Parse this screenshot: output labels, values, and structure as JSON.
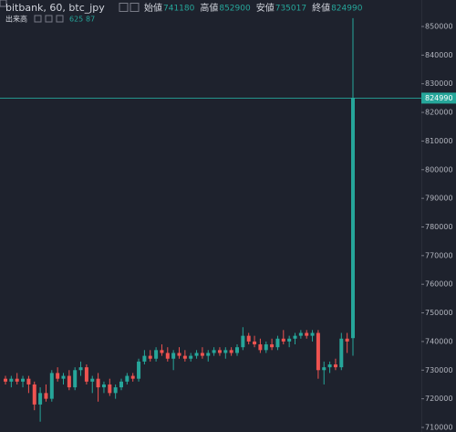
{
  "header": {
    "symbol": "bitbank, 60, btc_jpy",
    "ohlc": [
      {
        "label": "始値",
        "value": 741180
      },
      {
        "label": "高値",
        "value": 852900
      },
      {
        "label": "安値",
        "value": 735017
      },
      {
        "label": "終値",
        "value": 824990
      }
    ],
    "volume": {
      "label": "出来高",
      "values": [
        625,
        87
      ]
    }
  },
  "chart_data": {
    "type": "candlestick",
    "up_color": "#26a69a",
    "down_color": "#ef5350",
    "grid": false,
    "ylim": [
      708400,
      859250
    ],
    "yticks": [
      710000,
      720000,
      730000,
      740000,
      750000,
      760000,
      770000,
      780000,
      790000,
      800000,
      810000,
      820000,
      830000,
      840000,
      850000
    ],
    "last_price": 824990,
    "series": {
      "open": [
        727000,
        726000,
        727000,
        726000,
        727000,
        725000,
        718000,
        722000,
        720000,
        729000,
        727000,
        728000,
        724000,
        730000,
        731000,
        726000,
        727000,
        724000,
        725000,
        722000,
        724000,
        726000,
        728000,
        727000,
        733000,
        735000,
        734000,
        737000,
        736000,
        734000,
        736000,
        735000,
        734000,
        735000,
        736000,
        735000,
        736000,
        737000,
        736000,
        737000,
        736000,
        738000,
        742000,
        740000,
        739000,
        737000,
        739000,
        738000,
        741000,
        740000,
        741000,
        742000,
        743000,
        742000,
        743000,
        730000,
        731000,
        732000,
        731000,
        741000,
        741180
      ],
      "high": [
        728000,
        728000,
        729000,
        728000,
        728000,
        726000,
        724000,
        725000,
        730000,
        731000,
        729000,
        730000,
        731000,
        733000,
        732000,
        728000,
        729000,
        726000,
        727000,
        725000,
        727000,
        729000,
        729000,
        734000,
        737000,
        737000,
        738000,
        739000,
        738000,
        737000,
        738000,
        737000,
        736000,
        737000,
        738000,
        737000,
        738000,
        738000,
        738000,
        738000,
        739000,
        745000,
        743000,
        742000,
        741000,
        740000,
        741000,
        742000,
        744000,
        742000,
        743000,
        744000,
        744000,
        744000,
        744000,
        733000,
        733000,
        734000,
        743000,
        743000,
        852900
      ],
      "low": [
        725000,
        724000,
        725000,
        724000,
        722000,
        716000,
        712000,
        719000,
        719000,
        726000,
        725000,
        723000,
        723000,
        728000,
        725000,
        722000,
        719000,
        722000,
        721000,
        720000,
        723000,
        725000,
        726000,
        726000,
        732000,
        733000,
        733000,
        735000,
        733000,
        730000,
        734000,
        733000,
        733000,
        734000,
        734000,
        733000,
        735000,
        735000,
        734000,
        735000,
        735000,
        737000,
        739000,
        738000,
        736000,
        736000,
        737000,
        737000,
        739000,
        738000,
        739000,
        741000,
        741000,
        740000,
        727000,
        725000,
        729000,
        730000,
        730000,
        736000,
        735017
      ],
      "close": [
        726000,
        727000,
        726000,
        727000,
        725000,
        718000,
        722000,
        720000,
        729000,
        727000,
        728000,
        724000,
        730000,
        731000,
        726000,
        727000,
        724000,
        725000,
        722000,
        724000,
        726000,
        728000,
        727000,
        733000,
        735000,
        734000,
        737000,
        736000,
        734000,
        736000,
        735000,
        734000,
        735000,
        736000,
        735000,
        736000,
        737000,
        736000,
        737000,
        736000,
        738000,
        742000,
        740000,
        739000,
        737000,
        739000,
        738000,
        741000,
        740000,
        741000,
        742000,
        743000,
        742000,
        743000,
        730000,
        731000,
        732000,
        731000,
        741000,
        740000,
        824990
      ]
    }
  }
}
